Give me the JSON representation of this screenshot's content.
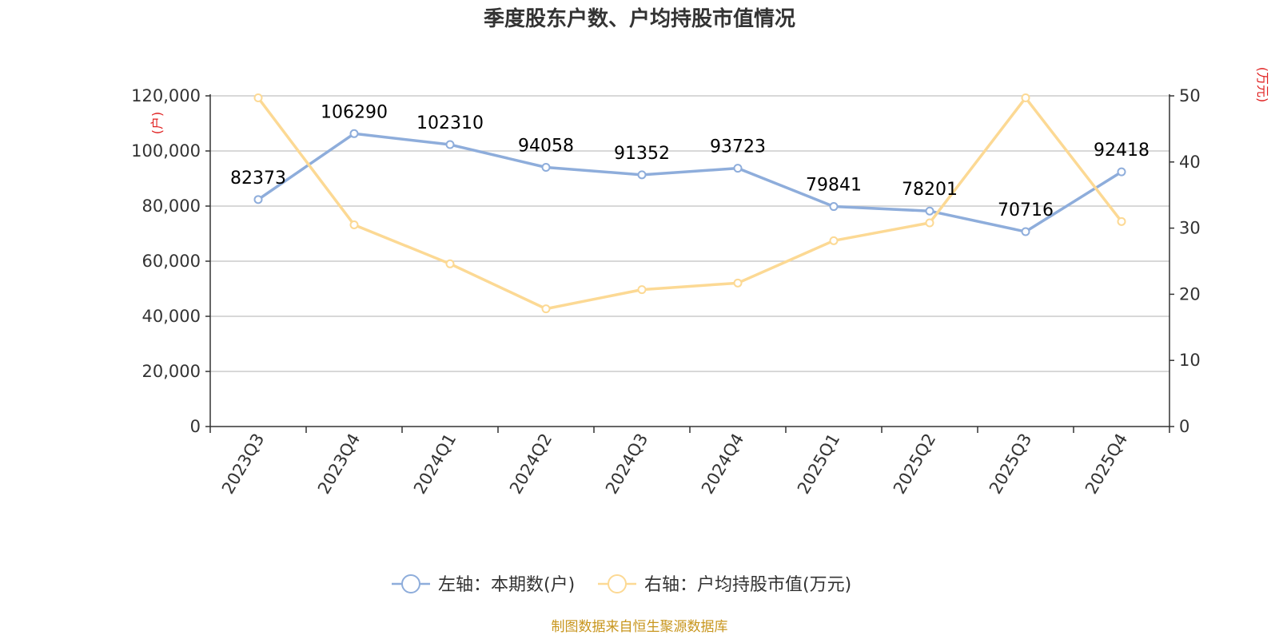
{
  "colors": {
    "series_left": "#8eaddb",
    "series_right": "#fcd994",
    "axis": "#333333",
    "grid": "#cccccc",
    "unit": "#e02020",
    "source": "#c8961e"
  },
  "chart_data": {
    "type": "line",
    "title": "季度股东户数、户均持股市值情况",
    "categories": [
      "2023Q3",
      "2023Q4",
      "2024Q1",
      "2024Q2",
      "2024Q3",
      "2024Q4",
      "2025Q1",
      "2025Q2",
      "2025Q3",
      "2025Q4"
    ],
    "y_left": {
      "unit": "(户)",
      "min": 0,
      "max": 120000,
      "ticks": [
        0,
        20000,
        40000,
        60000,
        80000,
        100000,
        120000
      ],
      "tick_labels": [
        "0",
        "20,000",
        "40,000",
        "60,000",
        "80,000",
        "100,000",
        "120,000"
      ]
    },
    "y_right": {
      "unit": "(万元)",
      "min": 0,
      "max": 50,
      "ticks": [
        0,
        10,
        20,
        30,
        40,
        50
      ],
      "tick_labels": [
        "0",
        "10",
        "20",
        "30",
        "40",
        "50"
      ]
    },
    "grid": true,
    "legend_position": "bottom-center",
    "series": [
      {
        "name": "左轴：本期数(户)",
        "axis": "left",
        "values": [
          82373,
          106290,
          102310,
          94058,
          91352,
          93723,
          79841,
          78201,
          70716,
          92418
        ],
        "data_labels": [
          "82373",
          "106290",
          "102310",
          "94058",
          "91352",
          "93723",
          "79841",
          "78201",
          "70716",
          "92418"
        ]
      },
      {
        "name": "右轴：户均持股市值(万元)",
        "axis": "right",
        "values": [
          49.7,
          30.5,
          24.6,
          17.8,
          20.7,
          21.7,
          28.1,
          30.8,
          49.7,
          31.0
        ]
      }
    ],
    "source": "制图数据来自恒生聚源数据库"
  }
}
